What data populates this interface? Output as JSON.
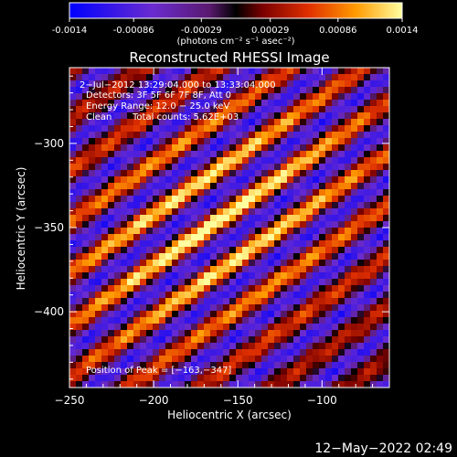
{
  "chart_data": {
    "type": "heatmap",
    "title": "Reconstructed RHESSI Image",
    "colorbar": {
      "ticks": [
        "-0.0014",
        "-0.00086",
        "-0.00029",
        "0.00029",
        "0.00086",
        "0.0014"
      ],
      "tick_values": [
        -0.0014,
        -0.00086,
        -0.00029,
        0.00029,
        0.00086,
        0.0014
      ],
      "range": [
        -0.0014,
        0.0014
      ],
      "units_label": "(photons cm⁻² s⁻¹ asec⁻²)"
    },
    "xlabel": "Heliocentric X (arcsec)",
    "ylabel": "Heliocentric Y (arcsec)",
    "xlim": [
      -250,
      -60
    ],
    "ylim": [
      -445,
      -255
    ],
    "xticks": [
      -250,
      -200,
      -150,
      -100
    ],
    "xtick_labels": [
      "−250",
      "−200",
      "−150",
      "−100"
    ],
    "yticks": [
      -300,
      -350,
      -400
    ],
    "ytick_labels": [
      "−300",
      "−350",
      "−400"
    ],
    "peak": [
      -163,
      -347
    ],
    "annotations": [
      "2−Jul−2012 13:29:04.000 to 13:33:04.000",
      "Detectors: 3F 5F 6F 7F 8F, Att 0",
      "Energy Range: 12.0 − 25.0 keV",
      "Clean",
      "Total counts: 5.62E+03",
      "Position of Peak = [−163,−347]"
    ],
    "colors": {
      "low": "#0000ff",
      "mid_low": "#7f3fbf",
      "zero": "#000000",
      "mid_high": "#e84000",
      "high": "#ffff80"
    }
  },
  "timestamp": "12−May−2022 02:49"
}
